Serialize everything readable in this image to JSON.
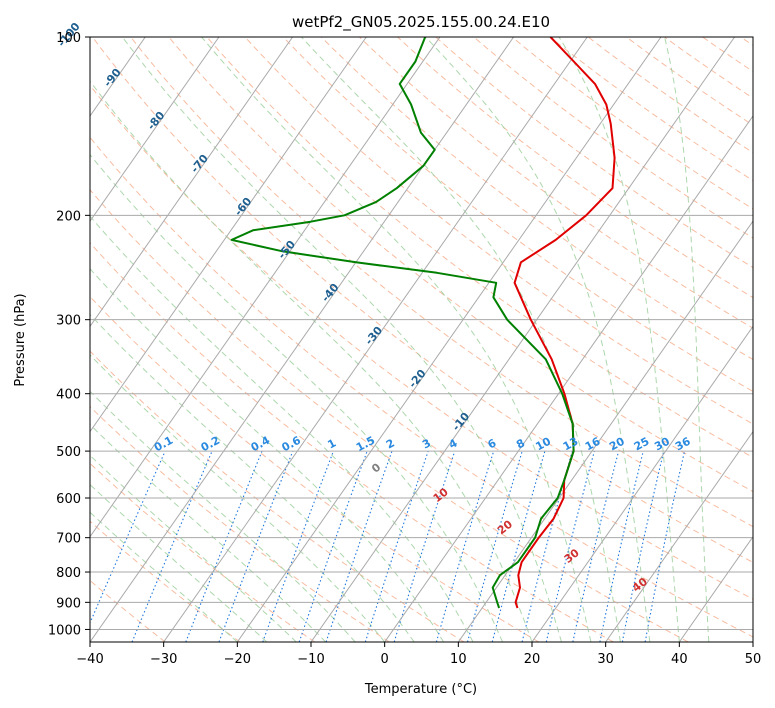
{
  "chart_data": {
    "type": "line",
    "title": "wetPf2_GN05.2025.155.00.24.E10",
    "xlabel": "Temperature (°C)",
    "ylabel": "Pressure (hPa)",
    "xlim": [
      -40,
      50
    ],
    "ylim": [
      1050,
      100
    ],
    "y_scale": "log",
    "x_ticks": [
      "−40",
      "−30",
      "−20",
      "−10",
      "0",
      "10",
      "20",
      "30",
      "40",
      "50"
    ],
    "y_ticks": [
      "100",
      "200",
      "300",
      "400",
      "500",
      "600",
      "700",
      "800",
      "900",
      "1000"
    ],
    "grid": true,
    "series": [
      {
        "color": "#e00000",
        "points": [
          {
            "p": 920,
            "t": 14.8
          },
          {
            "p": 900,
            "t": 14.0
          },
          {
            "p": 850,
            "t": 13.2
          },
          {
            "p": 810,
            "t": 11.8
          },
          {
            "p": 770,
            "t": 11.0
          },
          {
            "p": 700,
            "t": 11.0
          },
          {
            "p": 650,
            "t": 11.2
          },
          {
            "p": 600,
            "t": 10.6
          },
          {
            "p": 560,
            "t": 9.0
          },
          {
            "p": 500,
            "t": 7.5
          },
          {
            "p": 450,
            "t": 4.8
          },
          {
            "p": 400,
            "t": 0.8
          },
          {
            "p": 350,
            "t": -4.2
          },
          {
            "p": 300,
            "t": -10.8
          },
          {
            "p": 260,
            "t": -16.5
          },
          {
            "p": 240,
            "t": -17.6
          },
          {
            "p": 220,
            "t": -15.0
          },
          {
            "p": 200,
            "t": -13.2
          },
          {
            "p": 180,
            "t": -12.2
          },
          {
            "p": 160,
            "t": -14.8
          },
          {
            "p": 140,
            "t": -18.6
          },
          {
            "p": 130,
            "t": -21.0
          },
          {
            "p": 120,
            "t": -24.5
          },
          {
            "p": 110,
            "t": -29.5
          },
          {
            "p": 100,
            "t": -35.0
          }
        ]
      },
      {
        "color": "#008000",
        "points": [
          {
            "p": 920,
            "t": 12.3
          },
          {
            "p": 900,
            "t": 11.5
          },
          {
            "p": 850,
            "t": 9.5
          },
          {
            "p": 810,
            "t": 9.3
          },
          {
            "p": 770,
            "t": 10.5
          },
          {
            "p": 700,
            "t": 10.5
          },
          {
            "p": 650,
            "t": 9.5
          },
          {
            "p": 600,
            "t": 9.8
          },
          {
            "p": 560,
            "t": 9.0
          },
          {
            "p": 500,
            "t": 7.5
          },
          {
            "p": 450,
            "t": 4.8
          },
          {
            "p": 400,
            "t": 0.5
          },
          {
            "p": 350,
            "t": -5.0
          },
          {
            "p": 300,
            "t": -14.0
          },
          {
            "p": 275,
            "t": -18.0
          },
          {
            "p": 260,
            "t": -19.0
          },
          {
            "p": 250,
            "t": -28.0
          },
          {
            "p": 240,
            "t": -40.0
          },
          {
            "p": 230,
            "t": -51.0
          },
          {
            "p": 220,
            "t": -59.0
          },
          {
            "p": 212,
            "t": -57.0
          },
          {
            "p": 205,
            "t": -50.0
          },
          {
            "p": 200,
            "t": -46.0
          },
          {
            "p": 190,
            "t": -43.0
          },
          {
            "p": 180,
            "t": -41.5
          },
          {
            "p": 165,
            "t": -40.0
          },
          {
            "p": 155,
            "t": -40.0
          },
          {
            "p": 145,
            "t": -43.5
          },
          {
            "p": 130,
            "t": -47.5
          },
          {
            "p": 120,
            "t": -51.0
          },
          {
            "p": 110,
            "t": -51.0
          },
          {
            "p": 100,
            "t": -52.0
          }
        ]
      }
    ],
    "mixing_ratio_labels": [
      "0.1",
      "0.2",
      "0.4",
      "0.6",
      "1",
      "1.5",
      "2",
      "3",
      "4",
      "6",
      "8",
      "10",
      "13",
      "16",
      "20",
      "25",
      "30",
      "36"
    ],
    "mixing_ratio_values": [
      0.1,
      0.2,
      0.4,
      0.6,
      1,
      1.5,
      2,
      3,
      4,
      6,
      8,
      10,
      13,
      16,
      20,
      25,
      30,
      36
    ],
    "isotherm_labels": [
      "-100",
      "-90",
      "-80",
      "-70",
      "-60",
      "-50",
      "-40",
      "-30",
      "-20",
      "-10"
    ],
    "isotherm_values": [
      -100,
      -90,
      -80,
      -70,
      -60,
      -50,
      -40,
      -30,
      -20,
      -10
    ],
    "moist_adiabat_labels": [
      "0",
      "10",
      "20",
      "30",
      "40"
    ],
    "moist_adiabat_values": [
      0,
      10,
      20,
      30,
      40
    ],
    "colors": {
      "isotherm": "#aaaaaa",
      "isobar": "#aaaaaa",
      "dry_adiabat": "#f4a582",
      "moist_adiabat": "#9fd09f",
      "mixing_ratio": "#1f77dd",
      "isotherm_label": "#1f5f8f",
      "mixing_label": "#2a8ae0",
      "moist_label": "#d03030",
      "zero_label": "#808080"
    }
  }
}
